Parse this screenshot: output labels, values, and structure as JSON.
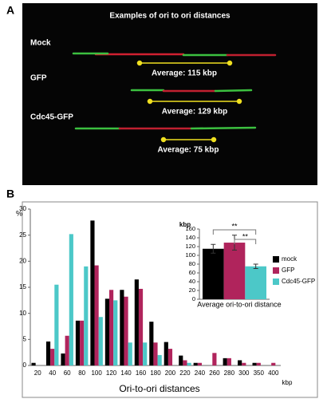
{
  "panel_labels": [
    "A",
    "B"
  ],
  "panel_a": {
    "title": "Examples of  ori to ori distances",
    "rows": [
      {
        "label": "Mock",
        "average": "Average: 115 kbp"
      },
      {
        "label": "GFP",
        "average": "Average: 129 kbp"
      },
      {
        "label": "Cdc45-GFP",
        "average": "Average: 75 kbp"
      }
    ]
  },
  "chart_data": [
    {
      "type": "bar",
      "y_label": "%",
      "x_title": "Ori-to-ori distances",
      "x_unit_label": "kbp",
      "categories": [
        "20",
        "40",
        "60",
        "80",
        "100",
        "120",
        "140",
        "160",
        "180",
        "200",
        "220",
        "240",
        "260",
        "280",
        "300",
        "350",
        "400"
      ],
      "series": [
        {
          "name": "mock",
          "color": "#000000",
          "values": [
            0.5,
            4.6,
            2.3,
            8.6,
            27.8,
            12.8,
            14.5,
            16.5,
            8.4,
            4.5,
            1.9,
            0.5,
            0,
            1.4,
            1,
            0.5,
            0
          ]
        },
        {
          "name": "GFP",
          "color": "#b0245c",
          "values": [
            0,
            3.2,
            5.7,
            8.6,
            19.2,
            14.5,
            13.2,
            14.7,
            4.4,
            3.2,
            1,
            0.5,
            2.4,
            1.4,
            0.5,
            0.5,
            0.5
          ]
        },
        {
          "name": "Cdc45-GFP",
          "color": "#4cc8c8",
          "values": [
            0,
            15.5,
            25.2,
            19,
            9.3,
            12.5,
            4.4,
            4.4,
            2,
            0,
            0.5,
            0,
            0,
            0,
            0,
            0,
            0
          ]
        }
      ],
      "ylim": [
        0,
        30
      ],
      "yticks": [
        0,
        5,
        10,
        15,
        20,
        25,
        30
      ]
    },
    {
      "type": "errorbar",
      "y_label": "kbp",
      "x_title": "Average ori-to-ori distance",
      "values": [
        115,
        129,
        75
      ],
      "errors": [
        10,
        17,
        5
      ],
      "colors": [
        "#000000",
        "#b0245c",
        "#4cc8c8"
      ],
      "ylim": [
        0,
        160
      ],
      "yticks": [
        0,
        20,
        40,
        60,
        80,
        100,
        120,
        140,
        160
      ],
      "annotations": [
        "**",
        "**"
      ]
    }
  ]
}
